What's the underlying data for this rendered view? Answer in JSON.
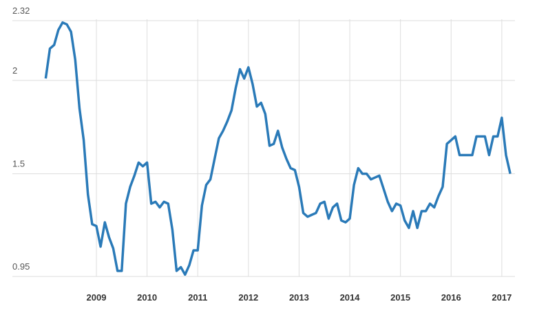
{
  "chart_data": {
    "type": "line",
    "x": [
      2008,
      2008.083,
      2008.167,
      2008.25,
      2008.333,
      2008.417,
      2008.5,
      2008.583,
      2008.667,
      2008.75,
      2008.833,
      2008.917,
      2009,
      2009.083,
      2009.167,
      2009.25,
      2009.333,
      2009.417,
      2009.5,
      2009.583,
      2009.667,
      2009.75,
      2009.833,
      2009.917,
      2010,
      2010.083,
      2010.167,
      2010.25,
      2010.333,
      2010.417,
      2010.5,
      2010.583,
      2010.667,
      2010.75,
      2010.833,
      2010.917,
      2011,
      2011.083,
      2011.167,
      2011.25,
      2011.333,
      2011.417,
      2011.5,
      2011.583,
      2011.667,
      2011.75,
      2011.833,
      2011.917,
      2012,
      2012.083,
      2012.167,
      2012.25,
      2012.333,
      2012.417,
      2012.5,
      2012.583,
      2012.667,
      2012.75,
      2012.833,
      2012.917,
      2013,
      2013.083,
      2013.167,
      2013.25,
      2013.333,
      2013.417,
      2013.5,
      2013.583,
      2013.667,
      2013.75,
      2013.833,
      2013.917,
      2014,
      2014.083,
      2014.167,
      2014.25,
      2014.333,
      2014.417,
      2014.5,
      2014.583,
      2014.667,
      2014.75,
      2014.833,
      2014.917,
      2015,
      2015.083,
      2015.167,
      2015.25,
      2015.333,
      2015.417,
      2015.5,
      2015.583,
      2015.667,
      2015.75,
      2015.833,
      2015.917,
      2016,
      2016.083,
      2016.167,
      2016.25,
      2016.333,
      2016.417,
      2016.5,
      2016.583,
      2016.667,
      2016.75,
      2016.833,
      2016.917,
      2017,
      2017.083,
      2017.167
    ],
    "series": [
      {
        "color": "#2a7ab8",
        "values": [
          2.01,
          2.17,
          2.19,
          2.27,
          2.31,
          2.3,
          2.26,
          2.11,
          1.85,
          1.68,
          1.39,
          1.23,
          1.22,
          1.11,
          1.24,
          1.16,
          1.1,
          0.98,
          0.98,
          1.34,
          1.43,
          1.49,
          1.56,
          1.54,
          1.56,
          1.34,
          1.35,
          1.32,
          1.35,
          1.34,
          1.2,
          0.98,
          1.0,
          0.96,
          1.01,
          1.09,
          1.09,
          1.33,
          1.44,
          1.47,
          1.58,
          1.69,
          1.73,
          1.78,
          1.84,
          1.96,
          2.06,
          2.01,
          2.07,
          1.98,
          1.86,
          1.88,
          1.82,
          1.65,
          1.66,
          1.73,
          1.64,
          1.58,
          1.53,
          1.52,
          1.43,
          1.29,
          1.27,
          1.28,
          1.29,
          1.34,
          1.35,
          1.26,
          1.32,
          1.34,
          1.25,
          1.24,
          1.26,
          1.44,
          1.53,
          1.5,
          1.5,
          1.47,
          1.48,
          1.49,
          1.42,
          1.35,
          1.3,
          1.34,
          1.33,
          1.25,
          1.21,
          1.3,
          1.21,
          1.3,
          1.3,
          1.34,
          1.32,
          1.38,
          1.43,
          1.66,
          1.68,
          1.7,
          1.6,
          1.6,
          1.6,
          1.6,
          1.7,
          1.7,
          1.7,
          1.6,
          1.7,
          1.7,
          1.8,
          1.6,
          1.5
        ]
      }
    ],
    "xlim": [
      2007.37,
      2017.26
    ],
    "xticks": [
      2009,
      2010,
      2011,
      2012,
      2013,
      2014,
      2015,
      2016,
      2017
    ],
    "ylim": [
      0.95,
      2.32
    ],
    "yticks": [
      0.95,
      1.5,
      2,
      2.32
    ],
    "grid": true
  }
}
